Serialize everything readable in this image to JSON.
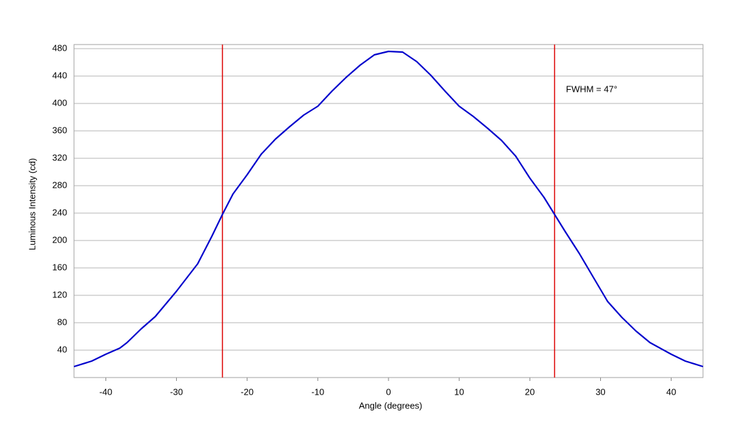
{
  "chart_data": {
    "type": "line",
    "x_label": "Angle (degrees)",
    "y_label": "Luminous Intensity (cd)",
    "annotation": "FWHM = 47°",
    "x": [
      -44.5,
      -42,
      -40,
      -38,
      -37,
      -35,
      -33,
      -30,
      -27,
      -25,
      -23.5,
      -22,
      -20,
      -18,
      -16,
      -14,
      -12,
      -10,
      -8,
      -6,
      -4,
      -2,
      0,
      2,
      4,
      6,
      8,
      10,
      12,
      14,
      16,
      18,
      20,
      22,
      23.5,
      25,
      27,
      29,
      31,
      33,
      35,
      37,
      40,
      42,
      44.5
    ],
    "values": [
      16,
      24,
      34,
      43,
      51,
      71,
      89,
      126,
      166,
      206,
      238,
      268,
      296,
      326,
      348,
      366,
      383,
      396,
      418,
      438,
      456,
      471,
      476,
      475,
      461,
      441,
      418,
      396,
      381,
      364,
      346,
      323,
      291,
      263,
      238,
      213,
      181,
      146,
      111,
      88,
      68,
      51,
      34,
      24,
      16
    ],
    "color": "#0000cc",
    "vlines": [
      -23.5,
      23.5
    ],
    "vline_color": "#dd0000",
    "xlim": [
      -44.5,
      44.5
    ],
    "ylim": [
      0,
      486
    ],
    "xticks": [
      -40,
      -30,
      -20,
      -10,
      0,
      10,
      20,
      30,
      40
    ],
    "yticks": [
      40,
      80,
      120,
      160,
      200,
      240,
      280,
      320,
      360,
      400,
      440,
      480
    ],
    "grid": true
  }
}
